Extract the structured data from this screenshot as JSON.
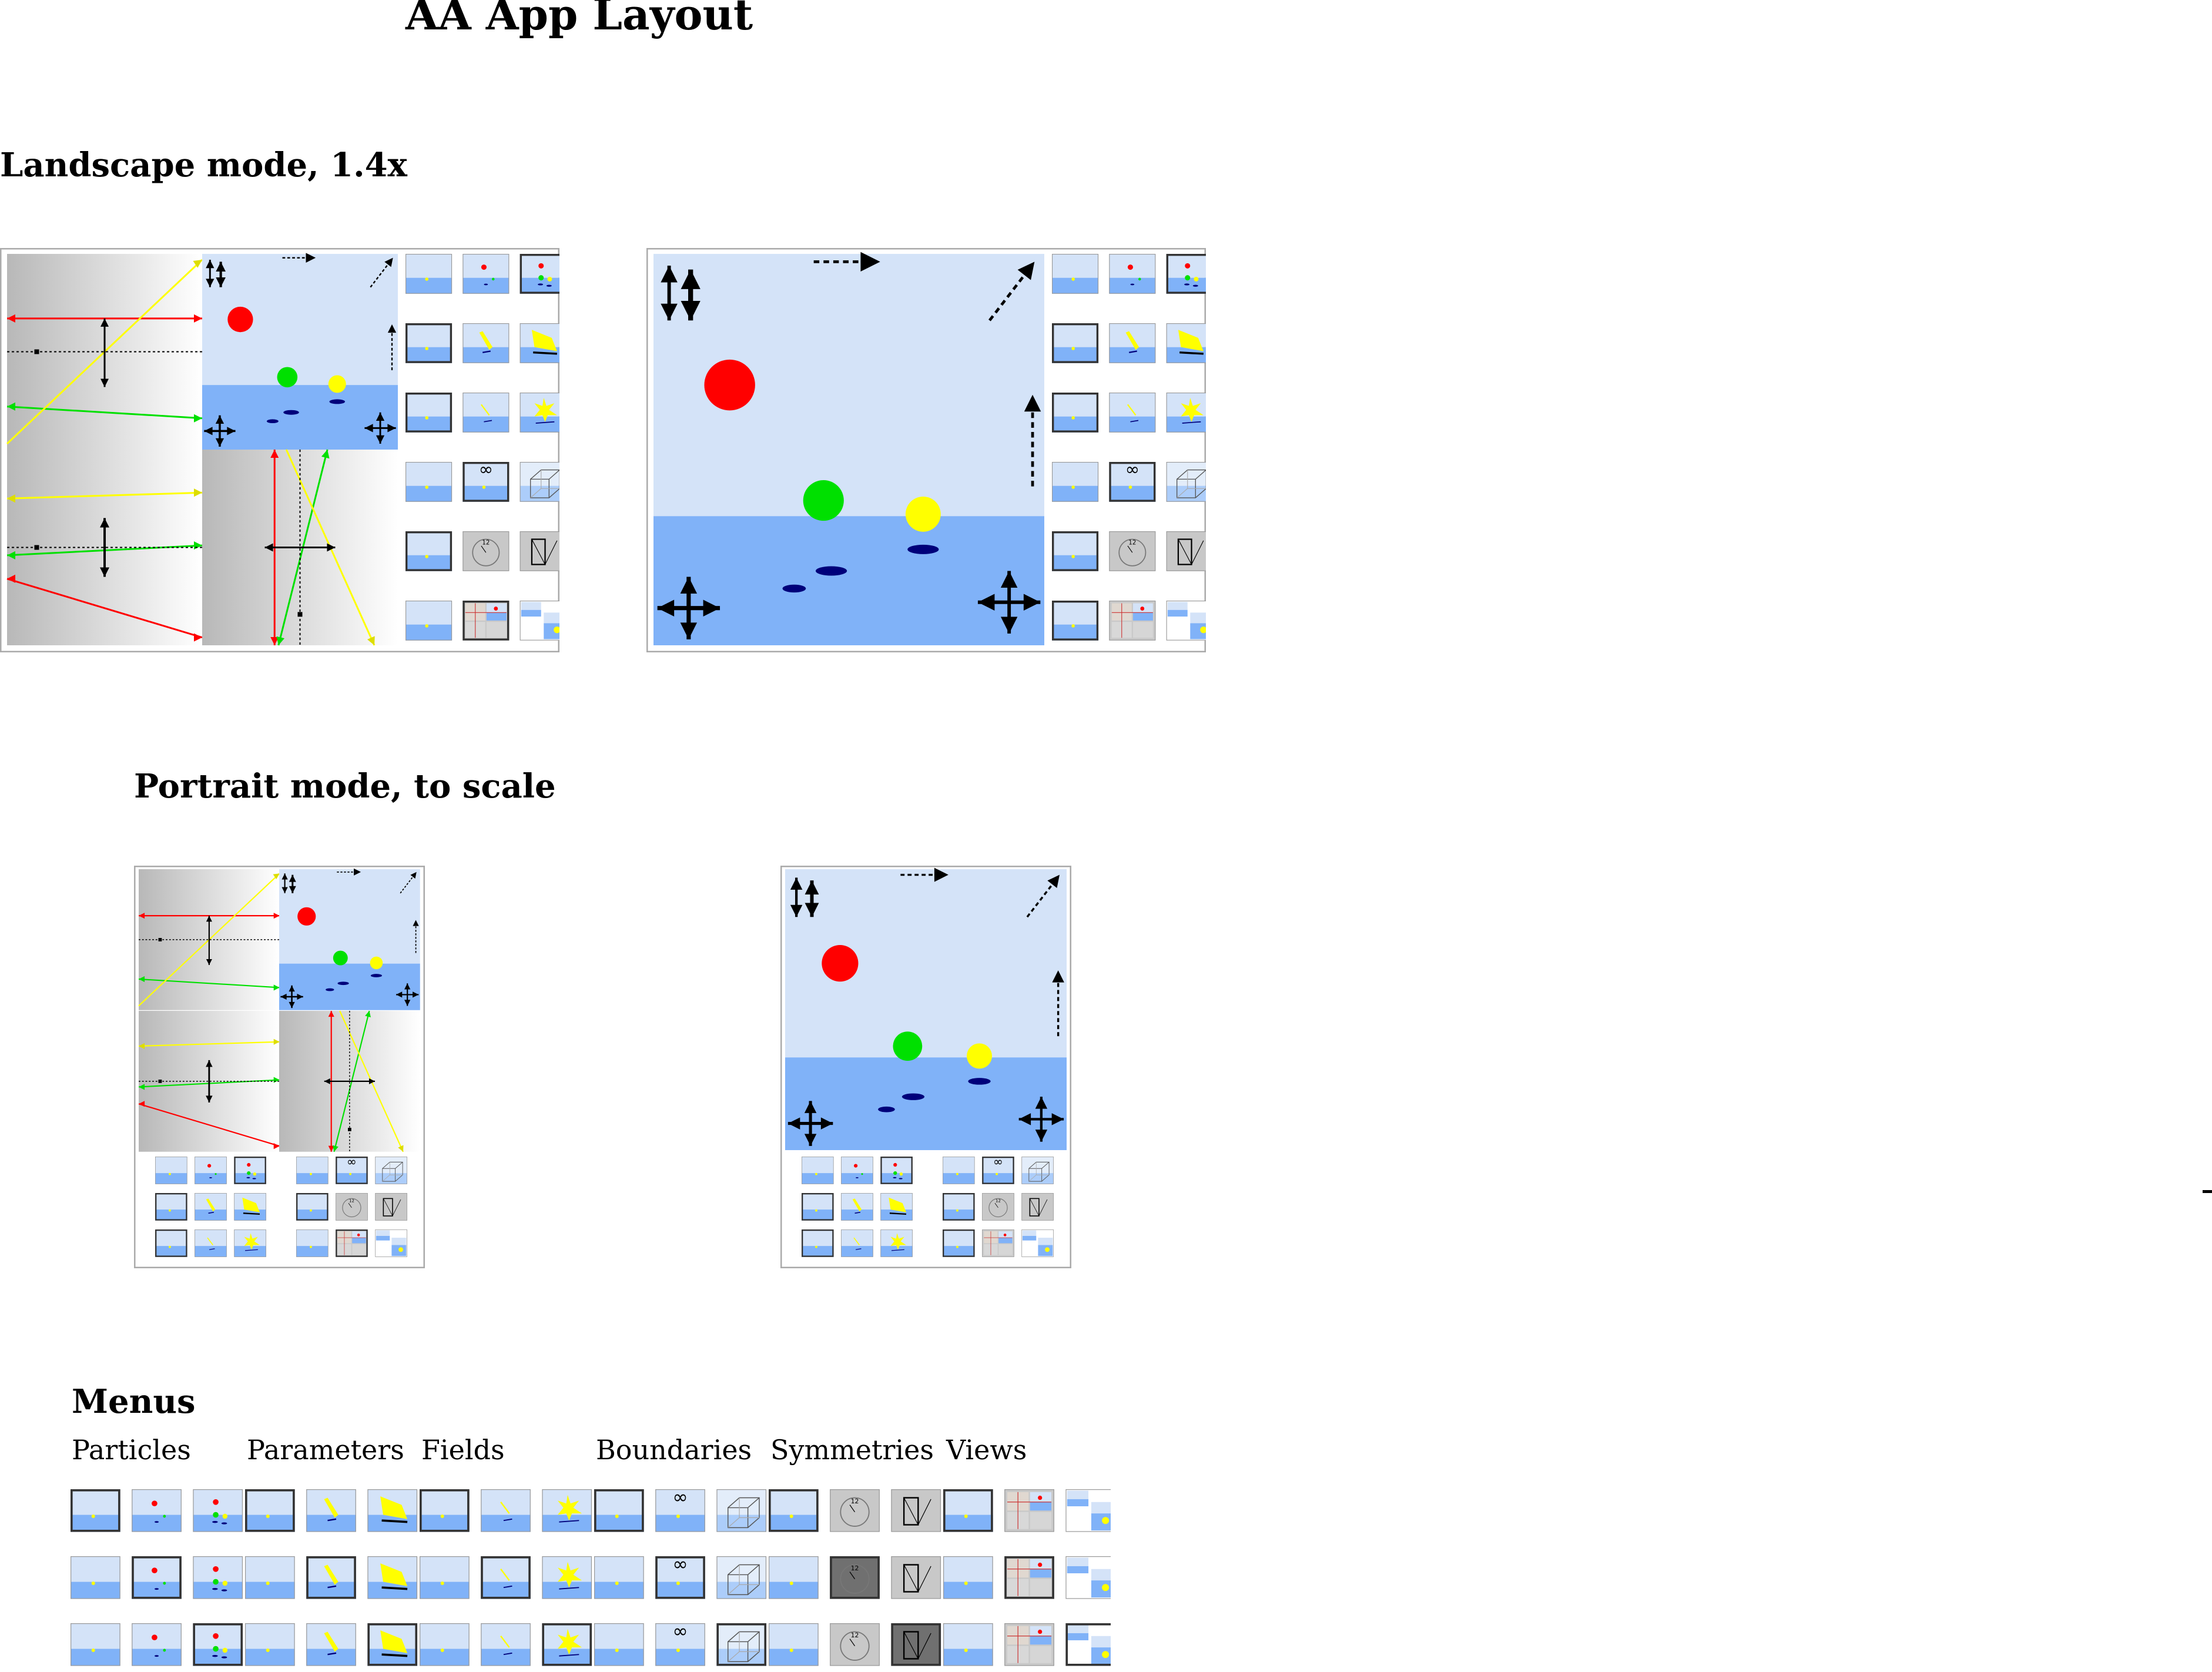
{
  "title": "AA App Layout",
  "sections": {
    "landscape": "Landscape mode, 1.4x",
    "portrait": "Portrait mode, to scale",
    "menus": "Menus"
  },
  "menu_names": [
    "Particles",
    "Parameters",
    "Fields",
    "Boundaries",
    "Symmetries",
    "Views"
  ],
  "infinity_glyph": "∞",
  "clock_glyph": "12",
  "colors": {
    "sky": "#d4e3f8",
    "sea": "#80b2f8",
    "red_particle": "#ff0000",
    "green_particle": "#00e000",
    "yellow_particle": "#ffff00",
    "shadow": "#00007a",
    "frame_border": "#aaaaaa",
    "selected_border": "#333333",
    "gradient_dark": "#b8b8b8",
    "gradient_light": "#ffffff",
    "disabled_gray": "#c8c8c8",
    "selected_gray": "#707070"
  },
  "icons": [
    "scene-icon",
    "single-particle-icon",
    "multi-particle-icon",
    "speed-icon",
    "mass-icon",
    "field-icon",
    "field-strong-icon",
    "infinity-icon",
    "cube-icon",
    "clock-icon",
    "reflect-icon",
    "views-single-icon",
    "views-grid-icon",
    "views-split-icon"
  ]
}
